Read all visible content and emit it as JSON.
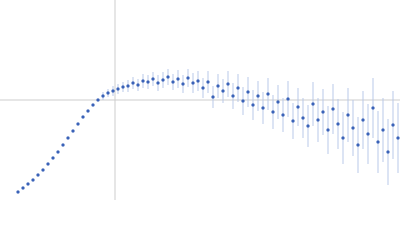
{
  "chart_data": {
    "type": "scatter",
    "x": [
      18,
      23,
      28,
      33,
      38,
      43,
      48,
      53,
      58,
      63,
      68,
      73,
      78,
      83,
      88,
      93,
      98,
      103,
      108,
      113,
      118,
      123,
      128,
      133,
      138,
      143,
      148,
      153,
      158,
      163,
      168,
      173,
      178,
      183,
      188,
      193,
      198,
      203,
      208,
      213,
      218,
      223,
      228,
      233,
      238,
      243,
      248,
      253,
      258,
      263,
      268,
      273,
      278,
      283,
      288,
      293,
      298,
      303,
      308,
      313,
      318,
      323,
      328,
      333,
      338,
      343,
      348,
      353,
      358,
      363,
      368,
      373,
      378,
      383,
      388,
      393,
      398
    ],
    "values": [
      8,
      12,
      16,
      20,
      25,
      30,
      36,
      42,
      48,
      55,
      62,
      69,
      76,
      83,
      89,
      95,
      100,
      104,
      107,
      109,
      111,
      113,
      114,
      117,
      115,
      119,
      118,
      121,
      117,
      120,
      123,
      118,
      121,
      116,
      122,
      117,
      119,
      112,
      118,
      103,
      114,
      109,
      116,
      104,
      112,
      99,
      108,
      95,
      104,
      92,
      106,
      88,
      98,
      85,
      101,
      79,
      93,
      82,
      74,
      96,
      80,
      88,
      70,
      91,
      76,
      62,
      85,
      72,
      55,
      80,
      66,
      92,
      58,
      70,
      48,
      75,
      62
    ],
    "errors": [
      1,
      1,
      1,
      1,
      1,
      1,
      1,
      1,
      1,
      1,
      1,
      1,
      1,
      1,
      1,
      1,
      1,
      4,
      4,
      5,
      5,
      5,
      6,
      6,
      6,
      7,
      7,
      7,
      8,
      8,
      8,
      8,
      9,
      9,
      9,
      10,
      10,
      10,
      11,
      11,
      12,
      12,
      13,
      13,
      14,
      14,
      15,
      15,
      15,
      16,
      16,
      17,
      17,
      17,
      18,
      18,
      19,
      20,
      21,
      22,
      22,
      23,
      24,
      25,
      25,
      26,
      27,
      28,
      28,
      29,
      30,
      30,
      31,
      32,
      33,
      34,
      35
    ],
    "color": "#3a62b8",
    "error_color": "#b9c9e9",
    "xlim": [
      0,
      400
    ],
    "ylim": [
      0,
      200
    ],
    "reference_lines": {
      "x": 115,
      "y": 100,
      "color": "#cccccc"
    }
  }
}
